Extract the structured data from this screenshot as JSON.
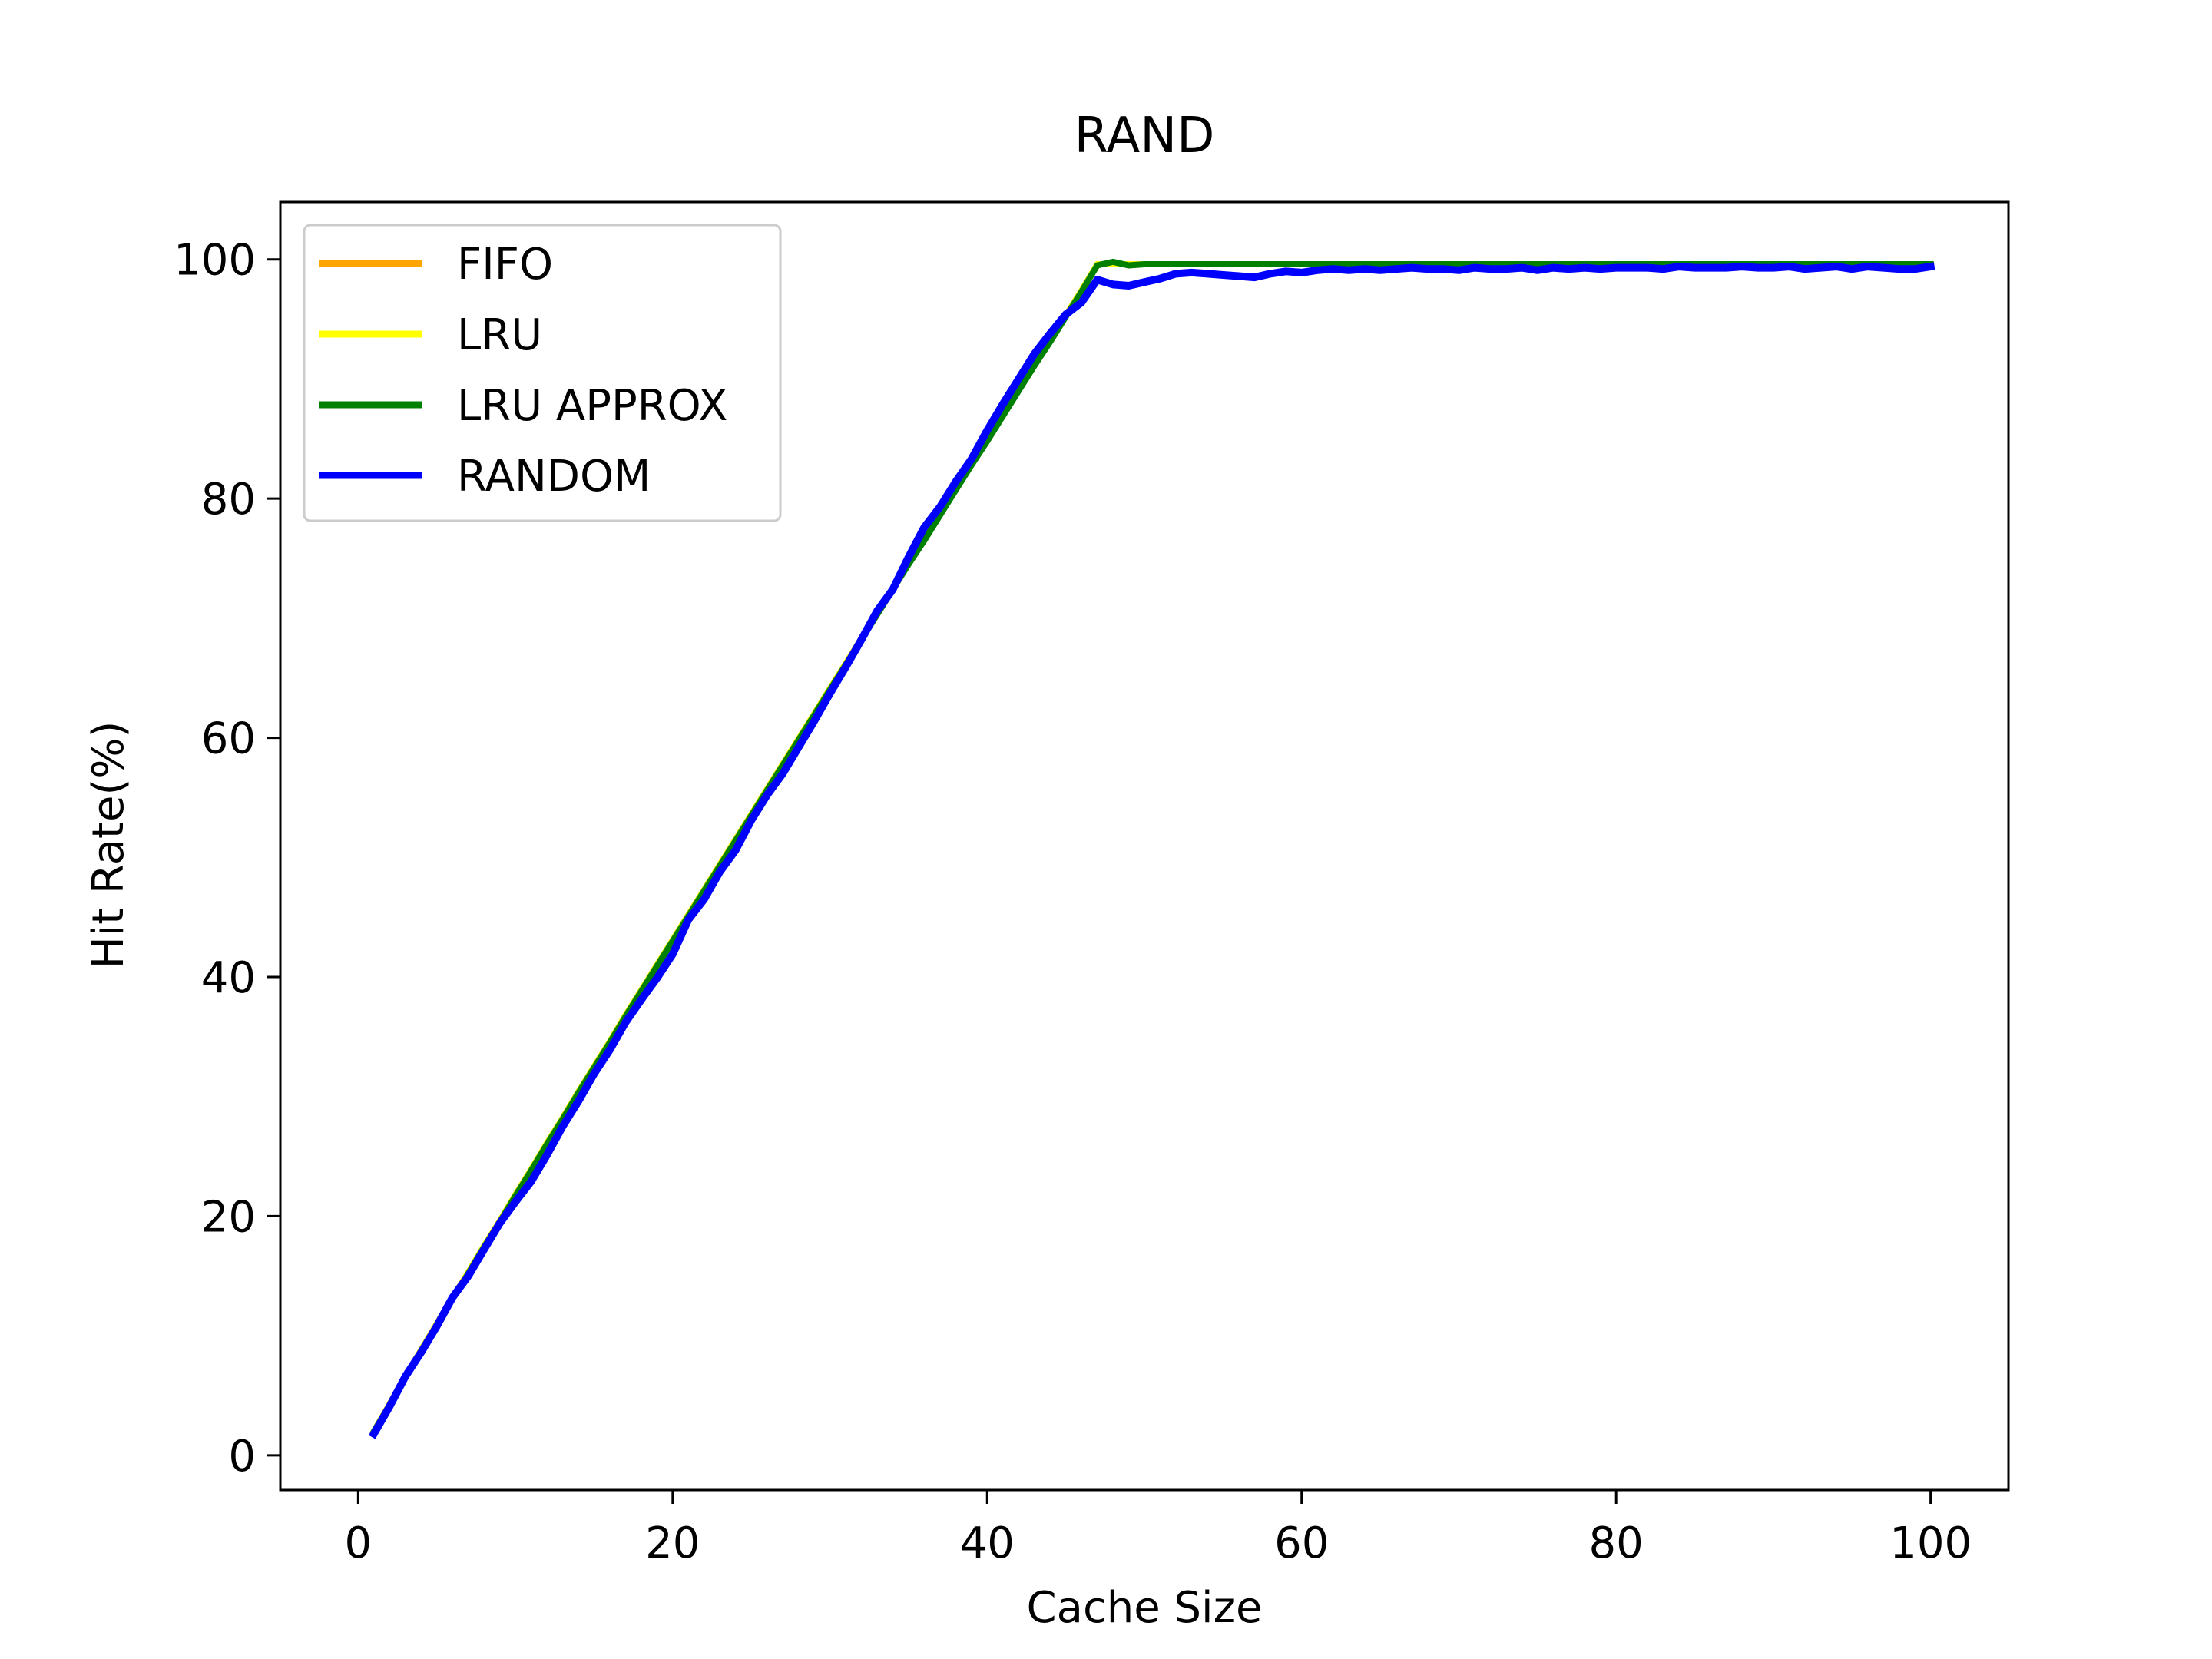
{
  "chart_data": {
    "type": "line",
    "title": "RAND",
    "xlabel": "Cache Size",
    "ylabel": "Hit Rate(%)",
    "xlim": [
      -4.95,
      104.95
    ],
    "ylim": [
      -2.9,
      104.8
    ],
    "xticks": [
      0,
      20,
      40,
      60,
      80,
      100
    ],
    "xtick_labels": [
      "0",
      "20",
      "40",
      "60",
      "80",
      "100"
    ],
    "yticks": [
      0,
      20,
      40,
      60,
      80,
      100
    ],
    "ytick_labels": [
      "0",
      "20",
      "40",
      "60",
      "80",
      "100"
    ],
    "grid": false,
    "legend": {
      "position": "upper-left",
      "entries": [
        "FIFO",
        "LRU",
        "LRU APPROX",
        "RANDOM"
      ]
    },
    "x": [
      1,
      2,
      3,
      4,
      5,
      6,
      7,
      8,
      9,
      10,
      11,
      12,
      13,
      14,
      15,
      16,
      17,
      18,
      19,
      20,
      21,
      22,
      23,
      24,
      25,
      26,
      27,
      28,
      29,
      30,
      31,
      32,
      33,
      34,
      35,
      36,
      37,
      38,
      39,
      40,
      41,
      42,
      43,
      44,
      45,
      46,
      47,
      48,
      49,
      50,
      51,
      52,
      53,
      54,
      55,
      56,
      57,
      58,
      59,
      60,
      61,
      62,
      63,
      64,
      65,
      66,
      67,
      68,
      69,
      70,
      71,
      72,
      73,
      74,
      75,
      76,
      77,
      78,
      79,
      80,
      81,
      82,
      83,
      84,
      85,
      86,
      87,
      88,
      89,
      90,
      91,
      92,
      93,
      94,
      95,
      96,
      97,
      98,
      99,
      100
    ],
    "series": [
      {
        "name": "FIFO",
        "color": "#ffa500",
        "values": [
          2,
          4.3,
          6.6,
          8.8,
          11.0,
          13.2,
          15.3,
          17.5,
          19.6,
          21.8,
          23.9,
          26.1,
          28.2,
          30.4,
          32.5,
          34.6,
          36.8,
          38.9,
          41.0,
          43.1,
          45.2,
          47.3,
          49.4,
          51.5,
          53.6,
          55.7,
          57.8,
          59.9,
          62.0,
          64.1,
          66.2,
          68.3,
          70.4,
          72.5,
          74.6,
          76.6,
          78.7,
          80.8,
          82.9,
          84.9,
          87.0,
          89.1,
          91.2,
          93.2,
          95.3,
          97.4,
          99.6,
          99.6,
          99.6,
          99.6,
          99.6,
          99.6,
          99.6,
          99.6,
          99.6,
          99.6,
          99.6,
          99.6,
          99.6,
          99.6,
          99.6,
          99.6,
          99.6,
          99.6,
          99.6,
          99.6,
          99.6,
          99.6,
          99.6,
          99.6,
          99.6,
          99.6,
          99.6,
          99.6,
          99.6,
          99.6,
          99.6,
          99.6,
          99.6,
          99.6,
          99.6,
          99.6,
          99.6,
          99.6,
          99.6,
          99.6,
          99.6,
          99.6,
          99.6,
          99.6,
          99.6,
          99.6,
          99.6,
          99.6,
          99.6,
          99.6,
          99.6,
          99.6,
          99.6,
          99.6
        ]
      },
      {
        "name": "LRU",
        "color": "#ffff00",
        "values": [
          2,
          4.3,
          6.6,
          8.8,
          11.0,
          13.2,
          15.3,
          17.5,
          19.6,
          21.8,
          23.9,
          26.1,
          28.2,
          30.4,
          32.5,
          34.6,
          36.8,
          38.9,
          41.0,
          43.1,
          45.2,
          47.3,
          49.4,
          51.5,
          53.6,
          55.7,
          57.8,
          59.9,
          62.0,
          64.1,
          66.2,
          68.3,
          70.4,
          72.5,
          74.6,
          76.6,
          78.7,
          80.8,
          82.9,
          84.9,
          87.0,
          89.1,
          91.2,
          93.2,
          95.3,
          97.4,
          99.6,
          99.6,
          99.6,
          99.6,
          99.6,
          99.6,
          99.6,
          99.6,
          99.6,
          99.6,
          99.6,
          99.6,
          99.6,
          99.6,
          99.6,
          99.6,
          99.6,
          99.6,
          99.6,
          99.6,
          99.6,
          99.6,
          99.6,
          99.6,
          99.6,
          99.6,
          99.6,
          99.6,
          99.6,
          99.6,
          99.6,
          99.6,
          99.6,
          99.6,
          99.6,
          99.6,
          99.6,
          99.6,
          99.6,
          99.6,
          99.6,
          99.6,
          99.6,
          99.6,
          99.6,
          99.6,
          99.6,
          99.6,
          99.6,
          99.6,
          99.6,
          99.6,
          99.6,
          99.6
        ]
      },
      {
        "name": "LRU APPROX",
        "color": "#008000",
        "values": [
          2,
          4.2,
          6.5,
          8.7,
          10.9,
          13.1,
          15.2,
          17.4,
          19.5,
          21.7,
          23.8,
          26.0,
          28.1,
          30.3,
          32.4,
          34.5,
          36.7,
          38.8,
          40.9,
          43.0,
          45.1,
          47.2,
          49.3,
          51.4,
          53.5,
          55.6,
          57.7,
          59.8,
          61.9,
          64.0,
          66.1,
          68.2,
          70.3,
          72.4,
          74.5,
          76.5,
          78.6,
          80.7,
          82.8,
          84.8,
          86.9,
          89.0,
          91.1,
          93.1,
          95.2,
          97.3,
          99.5,
          99.8,
          99.5,
          99.6,
          99.6,
          99.6,
          99.6,
          99.6,
          99.6,
          99.6,
          99.6,
          99.6,
          99.6,
          99.6,
          99.6,
          99.6,
          99.6,
          99.6,
          99.6,
          99.6,
          99.6,
          99.6,
          99.6,
          99.6,
          99.6,
          99.6,
          99.6,
          99.6,
          99.6,
          99.6,
          99.6,
          99.6,
          99.6,
          99.6,
          99.6,
          99.6,
          99.6,
          99.6,
          99.6,
          99.6,
          99.6,
          99.6,
          99.6,
          99.6,
          99.6,
          99.6,
          99.6,
          99.6,
          99.6,
          99.6,
          99.6,
          99.6,
          99.6,
          99.6
        ]
      },
      {
        "name": "RANDOM",
        "color": "#0000ff",
        "values": [
          1.8,
          4.1,
          6.6,
          8.6,
          10.8,
          13.2,
          15.0,
          17.2,
          19.4,
          21.2,
          22.9,
          25.1,
          27.5,
          29.6,
          31.9,
          33.9,
          36.2,
          38.1,
          39.9,
          41.9,
          44.8,
          46.5,
          48.8,
          50.6,
          53.1,
          55.2,
          57.0,
          59.2,
          61.4,
          63.7,
          65.9,
          68.2,
          70.6,
          72.4,
          75.1,
          77.6,
          79.3,
          81.4,
          83.3,
          85.7,
          87.9,
          90.0,
          92.1,
          93.8,
          95.4,
          96.4,
          98.3,
          97.9,
          97.8,
          98.1,
          98.4,
          98.8,
          98.9,
          98.8,
          98.7,
          98.6,
          98.5,
          98.8,
          99.0,
          98.9,
          99.1,
          99.2,
          99.1,
          99.2,
          99.1,
          99.2,
          99.3,
          99.2,
          99.2,
          99.1,
          99.3,
          99.2,
          99.2,
          99.3,
          99.1,
          99.3,
          99.2,
          99.3,
          99.2,
          99.3,
          99.3,
          99.3,
          99.2,
          99.4,
          99.3,
          99.3,
          99.3,
          99.4,
          99.3,
          99.3,
          99.4,
          99.2,
          99.3,
          99.4,
          99.2,
          99.4,
          99.3,
          99.2,
          99.2,
          99.4
        ]
      }
    ]
  }
}
